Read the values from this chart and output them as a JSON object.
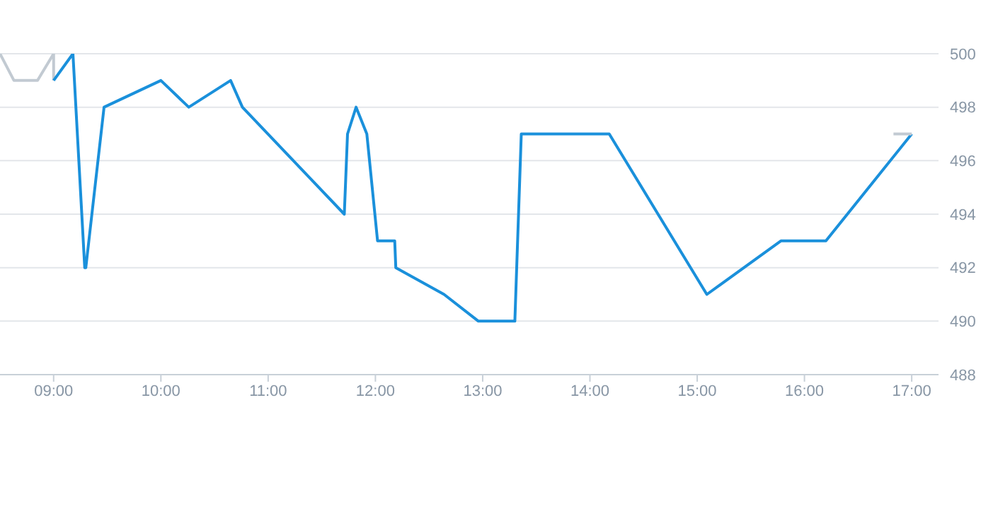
{
  "chart_data": {
    "type": "line",
    "xlim": [
      8.5,
      17.25
    ],
    "xticks": [
      {
        "value": 9,
        "label": "09:00"
      },
      {
        "value": 10,
        "label": "10:00"
      },
      {
        "value": 11,
        "label": "11:00"
      },
      {
        "value": 12,
        "label": "12:00"
      },
      {
        "value": 13,
        "label": "13:00"
      },
      {
        "value": 14,
        "label": "14:00"
      },
      {
        "value": 15,
        "label": "15:00"
      },
      {
        "value": 16,
        "label": "16:00"
      },
      {
        "value": 17,
        "label": "17:00"
      }
    ],
    "ylim": [
      488,
      500
    ],
    "yticks": [
      488,
      490,
      492,
      494,
      496,
      498,
      500
    ],
    "grid": "y",
    "marker": "none",
    "line_style": "solid",
    "series": [
      {
        "color": "#c2cad2",
        "x": [
          8.5,
          8.63,
          8.85,
          9.0,
          9.0
        ],
        "values": [
          500,
          499,
          499,
          500,
          499
        ]
      },
      {
        "color": "#1a90db",
        "x": [
          9.0,
          9.18,
          9.29,
          9.3,
          9.47,
          10.0,
          10.26,
          10.65,
          10.76,
          11.71,
          11.74,
          11.82,
          11.92,
          12.02,
          12.18,
          12.19,
          12.64,
          12.96,
          13.3,
          13.36,
          14.18,
          15.09,
          15.78,
          16.2,
          17.0
        ],
        "values": [
          499,
          500,
          492,
          492,
          498,
          499,
          498,
          499,
          498,
          494,
          497,
          498,
          497,
          493,
          493,
          492,
          491,
          490,
          490,
          497,
          497,
          491,
          493,
          493,
          497
        ]
      },
      {
        "color": "#c2cad2",
        "x": [
          16.83,
          17.0
        ],
        "values": [
          497,
          497
        ]
      }
    ]
  }
}
